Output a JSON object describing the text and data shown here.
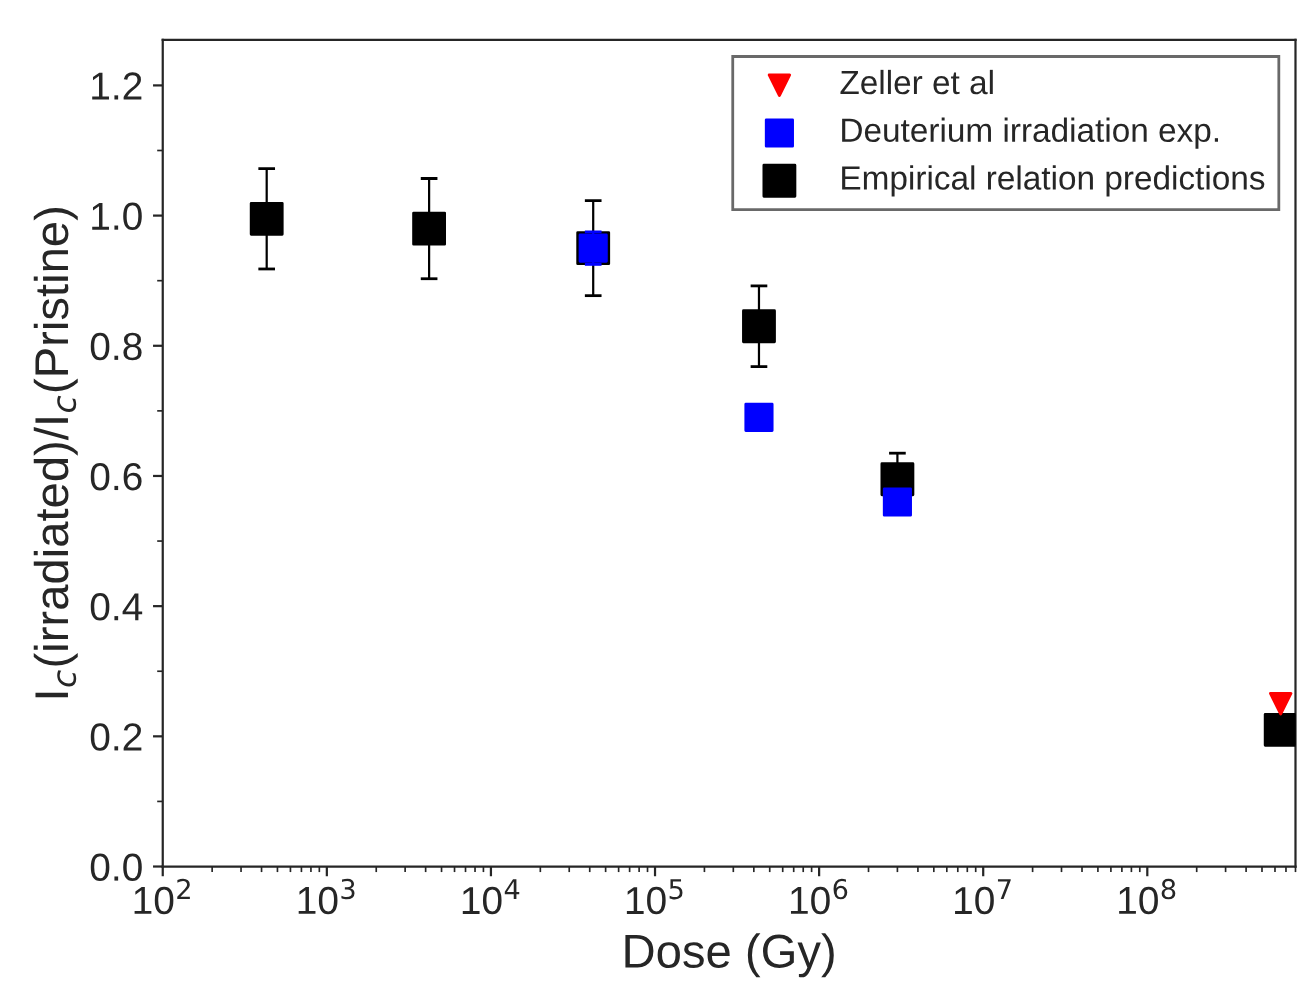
{
  "chart_data": {
    "type": "scatter",
    "xlabel": "Dose (Gy)",
    "ylabel": "I$_{c}$(irradiated)/I$_{c}$(Pristine)",
    "log": "x",
    "xlim": [
      100,
      800000000
    ],
    "ylim": [
      0,
      1.27
    ],
    "xticks": [
      {
        "value": 100,
        "label": "10$^{2}$"
      },
      {
        "value": 1000,
        "label": "10$^{3}$"
      },
      {
        "value": 10000,
        "label": "10$^{4}$"
      },
      {
        "value": 100000,
        "label": "10$^{5}$"
      },
      {
        "value": 1000000,
        "label": "10$^{6}$"
      },
      {
        "value": 10000000,
        "label": "10$^{7}$"
      },
      {
        "value": 100000000,
        "label": "10$^{8}$"
      }
    ],
    "yticks": [
      {
        "value": 0,
        "label": "0.0"
      },
      {
        "value": 0.2,
        "label": "0.2"
      },
      {
        "value": 0.4,
        "label": "0.4"
      },
      {
        "value": 0.6,
        "label": "0.6"
      },
      {
        "value": 0.8,
        "label": "0.8"
      },
      {
        "value": 1.0,
        "label": "1.0"
      },
      {
        "value": 1.2,
        "label": "1.2"
      }
    ],
    "grid": false,
    "legend": "top right",
    "series": [
      {
        "name": "Zeller et al",
        "color": "#ff0000",
        "marker": "triangle",
        "x": [
          650000000
        ],
        "values": [
          0.25
        ]
      },
      {
        "name": "Deuterium irradiation exp.",
        "color": "#0000ff",
        "marker": "square",
        "x": [
          42000,
          430000,
          3000000
        ],
        "values": [
          0.95,
          0.69,
          0.56
        ],
        "errors": [
          0.025,
          0.012,
          0.01
        ]
      },
      {
        "name": "Empirical relation predictions",
        "color": "#000000",
        "marker": "square",
        "x": [
          430,
          4200,
          42000,
          430000,
          3000000,
          650000000
        ],
        "values": [
          0.995,
          0.98,
          0.95,
          0.83,
          0.595,
          0.21
        ],
        "errors": [
          0.077,
          0.077,
          0.073,
          0.062,
          0.04,
          0.012
        ]
      }
    ]
  }
}
